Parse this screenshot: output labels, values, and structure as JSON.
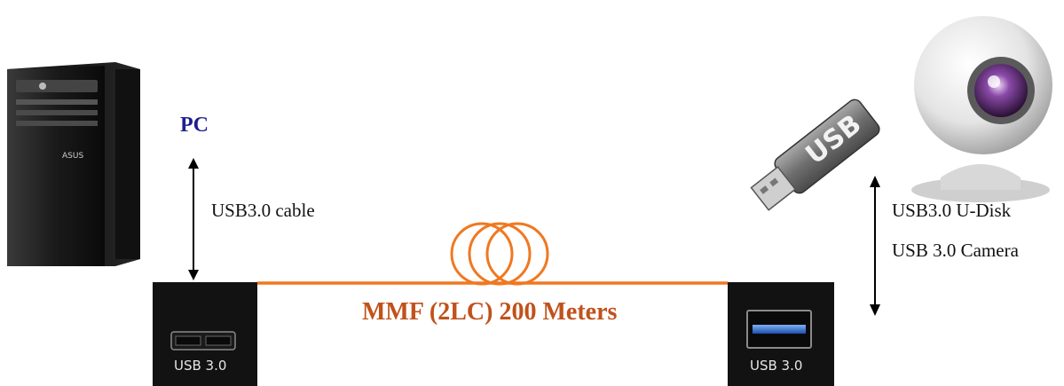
{
  "pc_label": "PC",
  "cable_label": "USB3.0 cable",
  "fiber_label": "MMF (2LC) 200 Meters",
  "udisk_label": "USB3.0 U-Disk",
  "camera_label": "USB 3.0 Camera",
  "left_port_label": "USB 3.0",
  "right_port_label": "USB 3.0",
  "usb_stick_text": "USB",
  "colors": {
    "fiber": "#f07820",
    "fiber_label": "#c0521a",
    "pc_label": "#1f1f8f",
    "module": "#111111"
  }
}
